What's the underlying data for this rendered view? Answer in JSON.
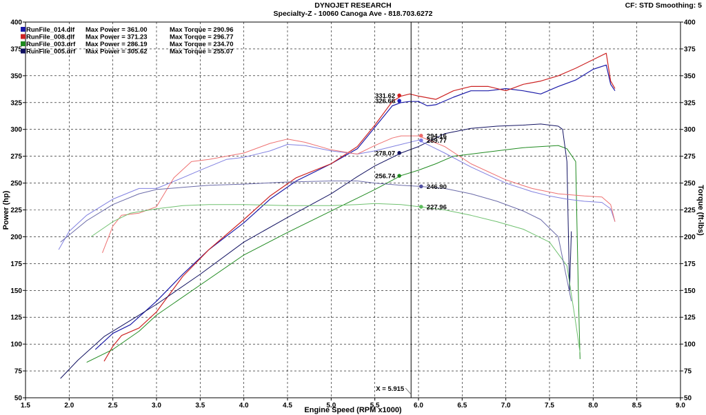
{
  "header": {
    "title": "DYNOJET RESEARCH",
    "subtitle": "Specialty-Z - 10060 Canoga Ave - 818.703.6272",
    "cf_smoothing": "CF: STD   Smoothing: 5"
  },
  "chart_data": {
    "type": "line",
    "xlabel": "Engine Speed (RPM x1000)",
    "ylabel": "Power (hp)",
    "y2label": "Torque (ft-lbs)",
    "xlim": [
      1.5,
      9.0
    ],
    "ylim": [
      50,
      400
    ],
    "y2lim": [
      50,
      400
    ],
    "grid": true,
    "x_ticks": [
      "1.5",
      "2.0",
      "2.5",
      "3.0",
      "3.5",
      "4.0",
      "4.5",
      "5.0",
      "5.5",
      "6.0",
      "6.5",
      "7.0",
      "7.5",
      "8.0",
      "8.5",
      "9.0"
    ],
    "y_ticks": [
      "50",
      "75",
      "100",
      "125",
      "150",
      "175",
      "200",
      "225",
      "250",
      "275",
      "300",
      "325",
      "350",
      "375",
      "400"
    ],
    "legend_position": "top-left",
    "legend": [
      {
        "file": "RunFile_014.dlf",
        "power_text": "Max Power = 361.00",
        "torque_text": "Max Torque = 290.96",
        "color": "#1a1aa8"
      },
      {
        "file": "RunFile_008.dlf",
        "power_text": "Max Power = 371.23",
        "torque_text": "Max Torque = 296.77",
        "color": "#cc2222"
      },
      {
        "file": "RunFile_003.drf",
        "power_text": "Max Power = 286.19",
        "torque_text": "Max Torque = 234.70",
        "color": "#1f8a1f"
      },
      {
        "file": "RunFile_005.drf",
        "power_text": "Max Power = 305.62",
        "torque_text": "Max Torque = 255.07",
        "color": "#101060"
      }
    ],
    "cursor": {
      "x": 5.915,
      "label": "X = 5.915"
    },
    "markers": [
      {
        "label": "331.62",
        "value": 331.62,
        "x": 5.78,
        "color": "#d42020",
        "side": "left"
      },
      {
        "label": "326.66",
        "value": 326.66,
        "x": 5.78,
        "color": "#2020c0",
        "side": "left"
      },
      {
        "label": "278.07",
        "value": 278.07,
        "x": 5.78,
        "color": "#101060",
        "side": "left"
      },
      {
        "label": "256.74",
        "value": 256.74,
        "x": 5.78,
        "color": "#1f8a1f",
        "side": "left"
      },
      {
        "label": "294.16",
        "value": 294.16,
        "x": 6.03,
        "color": "#ee6a6a",
        "side": "right"
      },
      {
        "label": "289.77",
        "value": 289.77,
        "x": 6.03,
        "color": "#7a7ae6",
        "side": "right"
      },
      {
        "label": "246.90",
        "value": 246.9,
        "x": 6.03,
        "color": "#5050a0",
        "side": "right"
      },
      {
        "label": "227.96",
        "value": 227.96,
        "x": 6.03,
        "color": "#5cbc5c",
        "side": "right"
      }
    ],
    "series": [
      {
        "color": "#1a1aa8",
        "width": 1.2,
        "x": [
          2.3,
          2.5,
          2.7,
          3.0,
          3.3,
          3.6,
          4.0,
          4.3,
          4.6,
          5.0,
          5.3,
          5.5,
          5.7,
          5.8,
          5.9,
          6.0,
          6.1,
          6.2,
          6.4,
          6.6,
          6.8,
          7.0,
          7.2,
          7.4,
          7.6,
          7.8,
          8.0,
          8.15,
          8.2,
          8.25
        ],
        "y": [
          95,
          110,
          118,
          140,
          165,
          188,
          213,
          235,
          252,
          268,
          282,
          302,
          322,
          325,
          326,
          326,
          322,
          323,
          330,
          336,
          336,
          338,
          336,
          333,
          340,
          346,
          356,
          360,
          342,
          336
        ]
      },
      {
        "color": "#cc2222",
        "width": 1.2,
        "x": [
          2.4,
          2.5,
          2.6,
          2.8,
          3.0,
          3.3,
          3.6,
          4.0,
          4.3,
          4.6,
          5.0,
          5.3,
          5.5,
          5.7,
          5.8,
          5.9,
          6.0,
          6.2,
          6.4,
          6.6,
          6.8,
          7.0,
          7.2,
          7.4,
          7.6,
          7.8,
          8.0,
          8.15,
          8.2,
          8.25
        ],
        "y": [
          84,
          98,
          108,
          115,
          130,
          163,
          188,
          216,
          238,
          255,
          268,
          284,
          304,
          326,
          331,
          333,
          331,
          328,
          336,
          340,
          340,
          336,
          342,
          345,
          350,
          357,
          365,
          371,
          345,
          338
        ]
      },
      {
        "color": "#1f8a1f",
        "width": 1.0,
        "x": [
          2.2,
          2.5,
          2.8,
          3.0,
          3.5,
          4.0,
          4.5,
          5.0,
          5.3,
          5.5,
          5.8,
          6.0,
          6.2,
          6.4,
          6.6,
          6.8,
          7.0,
          7.2,
          7.4,
          7.6,
          7.7,
          7.8,
          7.83,
          7.85
        ],
        "y": [
          83,
          95,
          112,
          127,
          155,
          183,
          204,
          224,
          236,
          244,
          257,
          262,
          268,
          275,
          277,
          279,
          281,
          283,
          284,
          285,
          282,
          270,
          150,
          86
        ]
      },
      {
        "color": "#101060",
        "width": 1.0,
        "x": [
          1.9,
          2.1,
          2.4,
          2.7,
          3.0,
          3.5,
          4.0,
          4.5,
          5.0,
          5.3,
          5.5,
          5.8,
          6.0,
          6.3,
          6.6,
          6.9,
          7.2,
          7.4,
          7.6,
          7.65,
          7.7,
          7.73,
          7.75
        ],
        "y": [
          68,
          85,
          107,
          122,
          137,
          165,
          195,
          218,
          240,
          256,
          266,
          278,
          284,
          296,
          301,
          303,
          304,
          305,
          303,
          300,
          270,
          150,
          205
        ]
      },
      {
        "color": "#8080e0",
        "width": 1.0,
        "x": [
          1.88,
          2.0,
          2.2,
          2.5,
          2.8,
          3.0,
          3.3,
          3.5,
          3.8,
          4.0,
          4.3,
          4.5,
          4.7,
          5.0,
          5.3,
          5.5,
          5.8,
          6.0,
          6.3,
          6.6,
          7.0,
          7.3,
          7.5,
          7.7,
          7.9,
          8.1,
          8.2,
          8.25
        ],
        "y": [
          188,
          205,
          220,
          235,
          245,
          245,
          255,
          262,
          272,
          274,
          280,
          286,
          285,
          280,
          277,
          280,
          286,
          290,
          278,
          265,
          250,
          242,
          238,
          235,
          233,
          232,
          226,
          214
        ]
      },
      {
        "color": "#ee7070",
        "width": 1.0,
        "x": [
          2.38,
          2.5,
          2.6,
          2.8,
          3.0,
          3.2,
          3.4,
          3.6,
          3.8,
          4.0,
          4.3,
          4.5,
          4.7,
          5.0,
          5.3,
          5.5,
          5.7,
          5.8,
          6.0,
          6.3,
          6.6,
          7.0,
          7.3,
          7.6,
          7.9,
          8.1,
          8.2,
          8.25
        ],
        "y": [
          185,
          210,
          220,
          222,
          228,
          255,
          270,
          272,
          275,
          278,
          287,
          291,
          288,
          281,
          277,
          285,
          292,
          294,
          294,
          284,
          268,
          253,
          245,
          240,
          238,
          237,
          230,
          214
        ]
      },
      {
        "color": "#6ec06e",
        "width": 1.0,
        "x": [
          2.25,
          2.5,
          2.7,
          3.0,
          3.3,
          3.6,
          4.0,
          4.5,
          5.0,
          5.3,
          5.5,
          5.8,
          6.0,
          6.3,
          6.6,
          6.9,
          7.2,
          7.5,
          7.7,
          7.8,
          7.85
        ],
        "y": [
          200,
          214,
          222,
          226,
          229,
          230,
          230,
          229,
          229,
          230,
          231,
          230,
          228,
          225,
          220,
          214,
          207,
          195,
          173,
          120,
          92
        ]
      },
      {
        "color": "#6a6aa8",
        "width": 1.0,
        "x": [
          1.9,
          2.2,
          2.5,
          2.8,
          3.0,
          3.3,
          3.6,
          4.0,
          4.5,
          5.0,
          5.3,
          5.5,
          5.8,
          6.0,
          6.3,
          6.6,
          6.9,
          7.2,
          7.4,
          7.6,
          7.7,
          7.75
        ],
        "y": [
          195,
          215,
          230,
          240,
          244,
          246,
          248,
          249,
          251,
          252,
          252,
          250,
          248,
          247,
          245,
          240,
          233,
          224,
          216,
          200,
          160,
          140
        ]
      }
    ]
  }
}
